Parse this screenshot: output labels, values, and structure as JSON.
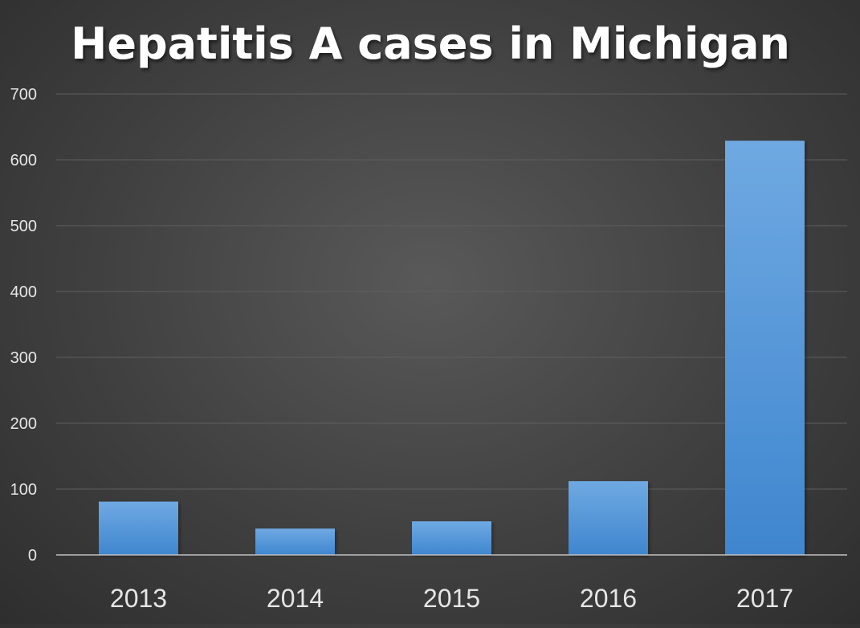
{
  "chart_data": {
    "type": "bar",
    "title": "Hepatitis A cases in Michigan",
    "categories": [
      "2013",
      "2014",
      "2015",
      "2016",
      "2017"
    ],
    "values": [
      81,
      40,
      51,
      112,
      629
    ],
    "xlabel": "",
    "ylabel": "",
    "ylim": [
      0,
      700
    ],
    "yticks": [
      0,
      100,
      200,
      300,
      400,
      500,
      600,
      700
    ],
    "grid": true,
    "legend": "none"
  },
  "colors": {
    "background": "#434343",
    "bar_top": "#6fa9e2",
    "bar_bottom": "#3f86cf",
    "gridline": "#5e5e5e",
    "axis": "#bfbfbf",
    "text": "#ffffff",
    "tick_text": "#e6e6e6"
  }
}
